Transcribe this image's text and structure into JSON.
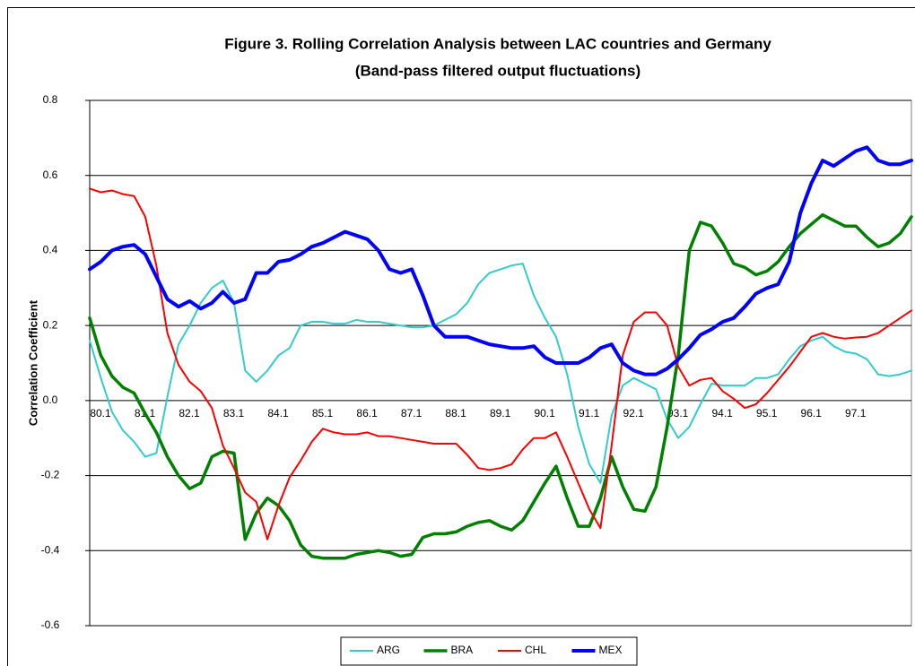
{
  "chart_data": {
    "type": "line",
    "title": "Figure 3. Rolling Correlation Analysis between LAC countries and Germany",
    "subtitle": "(Band-pass filtered output fluctuations)",
    "y_label": "Correlation Coefficient",
    "categories": [
      "80.1",
      null,
      null,
      null,
      "81.1",
      null,
      null,
      null,
      "82.1",
      null,
      null,
      null,
      "83.1",
      null,
      null,
      null,
      "84.1",
      null,
      null,
      null,
      "85.1",
      null,
      null,
      null,
      "86.1",
      null,
      null,
      null,
      "87.1",
      null,
      null,
      null,
      "88.1",
      null,
      null,
      null,
      "89.1",
      null,
      null,
      null,
      "90.1",
      null,
      null,
      null,
      "91.1",
      null,
      null,
      null,
      "92.1",
      null,
      null,
      null,
      "93.1",
      null,
      null,
      null,
      "94.1",
      null,
      null,
      null,
      "95.1",
      null,
      null,
      null,
      "96.1",
      null,
      null,
      null,
      "97.1",
      null,
      null,
      null,
      null,
      null,
      null
    ],
    "ylim": [
      -0.6,
      0.8
    ],
    "yticks": [
      -0.6,
      -0.4,
      -0.2,
      {
        "value": 0,
        "label": "0.0"
      },
      0.2,
      0.4,
      0.6,
      0.8
    ],
    "grid": true,
    "legend": "bottom",
    "series": [
      {
        "name": "ARG",
        "color": "#33cccc",
        "values": [
          0.16,
          0.06,
          -0.03,
          -0.08,
          -0.11,
          -0.15,
          -0.14,
          0.01,
          0.15,
          0.2,
          0.26,
          0.3,
          0.32,
          0.26,
          0.08,
          0.05,
          0.08,
          0.12,
          0.14,
          0.2,
          0.21,
          0.21,
          0.205,
          0.205,
          0.215,
          0.21,
          0.21,
          0.205,
          0.2,
          0.195,
          0.195,
          0.2,
          0.215,
          0.23,
          0.26,
          0.31,
          0.34,
          0.35,
          0.36,
          0.365,
          0.28,
          0.22,
          0.17,
          0.07,
          -0.07,
          -0.17,
          -0.22,
          -0.04,
          0.04,
          0.06,
          0.045,
          0.03,
          -0.05,
          -0.1,
          -0.07,
          -0.01,
          0.045,
          0.04,
          0.04,
          0.04,
          0.06,
          0.06,
          0.07,
          0.11,
          0.145,
          0.16,
          0.17,
          0.145,
          0.13,
          0.125,
          0.11,
          0.07,
          0.065,
          0.07,
          0.08
        ]
      },
      {
        "name": "BRA",
        "color": "#008000",
        "values": [
          0.22,
          0.12,
          0.065,
          0.035,
          0.02,
          -0.035,
          -0.085,
          -0.15,
          -0.2,
          -0.235,
          -0.22,
          -0.15,
          -0.135,
          -0.14,
          -0.37,
          -0.3,
          -0.26,
          -0.28,
          -0.32,
          -0.385,
          -0.415,
          -0.42,
          -0.42,
          -0.42,
          -0.41,
          -0.405,
          -0.4,
          -0.405,
          -0.415,
          -0.41,
          -0.365,
          -0.355,
          -0.355,
          -0.35,
          -0.335,
          -0.325,
          -0.32,
          -0.335,
          -0.345,
          -0.32,
          -0.27,
          -0.22,
          -0.175,
          -0.26,
          -0.335,
          -0.335,
          -0.26,
          -0.15,
          -0.23,
          -0.29,
          -0.295,
          -0.23,
          -0.07,
          0.12,
          0.4,
          0.475,
          0.465,
          0.42,
          0.365,
          0.355,
          0.335,
          0.345,
          0.37,
          0.41,
          0.445,
          0.47,
          0.495,
          0.48,
          0.465,
          0.465,
          0.435,
          0.41,
          0.42,
          0.445,
          0.49
        ]
      },
      {
        "name": "CHL",
        "color": "#ff0000",
        "values": [
          0.565,
          0.555,
          0.56,
          0.55,
          0.545,
          0.49,
          0.36,
          0.18,
          0.095,
          0.05,
          0.025,
          -0.02,
          -0.12,
          -0.18,
          -0.245,
          -0.27,
          -0.37,
          -0.28,
          -0.205,
          -0.16,
          -0.11,
          -0.075,
          -0.085,
          -0.09,
          -0.09,
          -0.085,
          -0.095,
          -0.095,
          -0.1,
          -0.105,
          -0.11,
          -0.115,
          -0.115,
          -0.115,
          -0.145,
          -0.18,
          -0.185,
          -0.18,
          -0.17,
          -0.13,
          -0.1,
          -0.1,
          -0.085,
          -0.15,
          -0.22,
          -0.29,
          -0.34,
          -0.12,
          0.12,
          0.21,
          0.235,
          0.235,
          0.2,
          0.09,
          0.04,
          0.055,
          0.06,
          0.025,
          0.005,
          -0.02,
          -0.01,
          0.02,
          0.055,
          0.09,
          0.13,
          0.17,
          0.18,
          0.17,
          0.165,
          0.168,
          0.17,
          0.18,
          0.2,
          0.22,
          0.24
        ]
      },
      {
        "name": "MEX",
        "color": "#0000ff",
        "values": [
          0.35,
          0.37,
          0.4,
          0.41,
          0.415,
          0.39,
          0.33,
          0.27,
          0.25,
          0.265,
          0.245,
          0.26,
          0.29,
          0.26,
          0.27,
          0.34,
          0.34,
          0.37,
          0.375,
          0.39,
          0.41,
          0.42,
          0.435,
          0.45,
          0.44,
          0.43,
          0.4,
          0.35,
          0.34,
          0.35,
          0.28,
          0.2,
          0.17,
          0.17,
          0.17,
          0.16,
          0.15,
          0.145,
          0.14,
          0.14,
          0.145,
          0.115,
          0.1,
          0.1,
          0.1,
          0.115,
          0.14,
          0.15,
          0.1,
          0.08,
          0.07,
          0.07,
          0.085,
          0.11,
          0.14,
          0.175,
          0.19,
          0.21,
          0.22,
          0.25,
          0.285,
          0.3,
          0.31,
          0.37,
          0.5,
          0.58,
          0.64,
          0.625,
          0.645,
          0.665,
          0.675,
          0.64,
          0.63,
          0.63,
          0.64
        ]
      }
    ]
  }
}
